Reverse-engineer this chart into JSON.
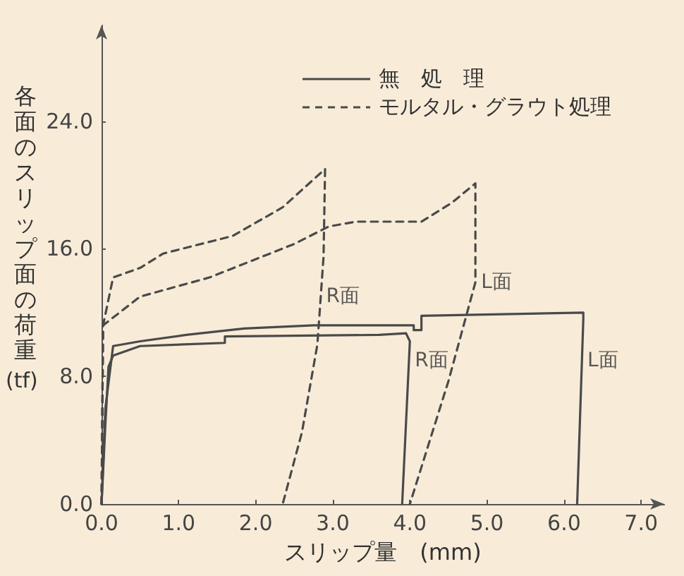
{
  "chart_data": {
    "type": "line",
    "xlabel": "スリップ量　(mm)",
    "ylabel": "各面のスリップ面の荷重(tf)",
    "xlim": [
      0,
      7.3
    ],
    "ylim": [
      0,
      30
    ],
    "xticks": [
      {
        "value": 0,
        "label": "0.0"
      },
      {
        "value": 1,
        "label": "1.0"
      },
      {
        "value": 2,
        "label": "2.0"
      },
      {
        "value": 3,
        "label": "3.0"
      },
      {
        "value": 4,
        "label": "4.0"
      },
      {
        "value": 5,
        "label": "5.0"
      },
      {
        "value": 6,
        "label": "6.0"
      },
      {
        "value": 7,
        "label": "7.0"
      }
    ],
    "yticks": [
      {
        "value": 0,
        "label": "0.0"
      },
      {
        "value": 8,
        "label": "8.0"
      },
      {
        "value": 16,
        "label": "16.0"
      },
      {
        "value": 24,
        "label": "24.0"
      }
    ],
    "grid": false,
    "legend": "top right",
    "marker": "none",
    "series": [
      {
        "name": "無　処　理",
        "color": "#4a4a4a",
        "line_style": "solid",
        "x": [
          0,
          0.05,
          0.09,
          0.15,
          0.5,
          1.6,
          1.6,
          3.6,
          3.95,
          4.0,
          3.9
        ],
        "values": [
          0,
          5,
          8.6,
          9.3,
          9.9,
          10.1,
          10.5,
          10.6,
          10.7,
          10.2,
          0
        ]
      },
      {
        "color": "#4a4a4a",
        "line_style": "solid",
        "x": [
          0,
          0.05,
          0.15,
          0.5,
          1.1,
          1.85,
          2.75,
          4.05,
          4.05,
          4.15,
          4.15,
          6.25,
          6.25,
          6.17
        ],
        "values": [
          0,
          6,
          9.9,
          10.2,
          10.6,
          11.0,
          11.2,
          11.2,
          10.9,
          10.9,
          11.8,
          12.0,
          11.6,
          0
        ]
      },
      {
        "name": "モルタル・グラウト処理",
        "color": "#4a4a4a",
        "line_style": "dashed",
        "x": [
          0,
          0.02,
          0.15,
          0.5,
          0.8,
          1.7,
          2.35,
          2.9,
          2.88,
          2.8,
          2.6,
          2.35
        ],
        "values": [
          0,
          11.2,
          14.2,
          14.8,
          15.7,
          16.8,
          18.6,
          21.0,
          15.5,
          10,
          4.5,
          0
        ]
      },
      {
        "color": "#4a4a4a",
        "line_style": "dashed",
        "x": [
          0,
          0.02,
          0.5,
          1.4,
          2.5,
          2.95,
          3.3,
          4.15,
          4.55,
          4.85,
          4.85,
          4.5,
          4.0
        ],
        "values": [
          0,
          11.2,
          13.0,
          14.2,
          16.3,
          17.4,
          17.7,
          17.7,
          18.9,
          20.1,
          13.9,
          7.7,
          0
        ]
      }
    ],
    "annotations": [
      {
        "text": "R面",
        "x": 2.84,
        "y": 13
      },
      {
        "text": "L面",
        "x": 4.85,
        "y": 13.9
      },
      {
        "text": "R面",
        "x": 3.99,
        "y": 9
      },
      {
        "text": "L面",
        "x": 6.23,
        "y": 9
      }
    ]
  }
}
